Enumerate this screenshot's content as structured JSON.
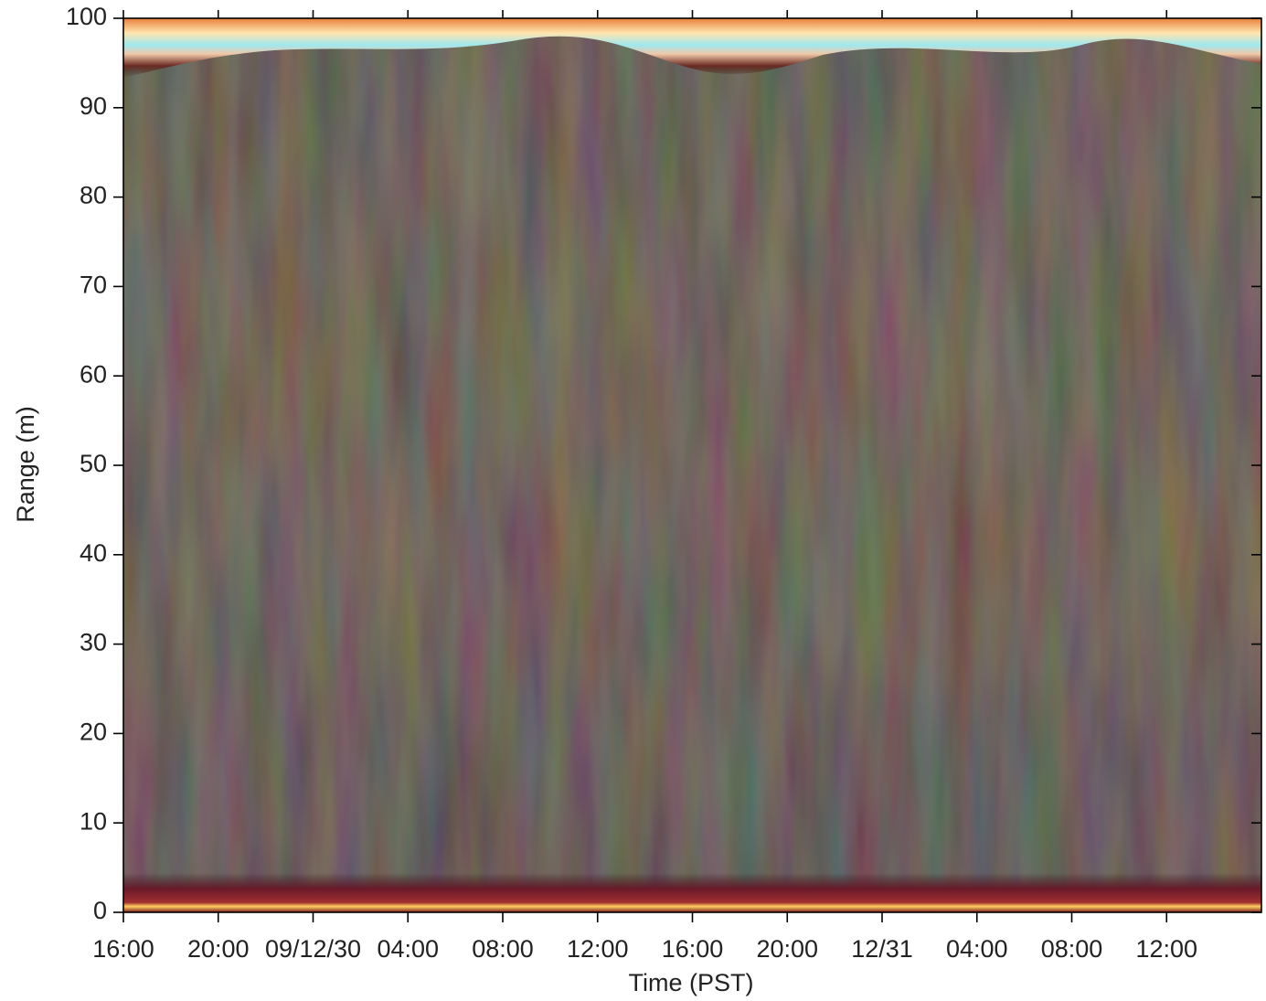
{
  "chart_data": {
    "type": "echogram",
    "xlabel": "Time (PST)",
    "ylabel": "Range (m)",
    "xlim": [
      "2009-12-29T16:00",
      "2009-12-31T16:00"
    ],
    "xticks": [
      {
        "value": "2009-12-29T16:00",
        "label": "16:00"
      },
      {
        "value": "2009-12-29T20:00",
        "label": "20:00"
      },
      {
        "value": "2009-12-30T00:00",
        "label": "09/12/30"
      },
      {
        "value": "2009-12-30T04:00",
        "label": "04:00"
      },
      {
        "value": "2009-12-30T08:00",
        "label": "08:00"
      },
      {
        "value": "2009-12-30T12:00",
        "label": "12:00"
      },
      {
        "value": "2009-12-30T16:00",
        "label": "16:00"
      },
      {
        "value": "2009-12-30T20:00",
        "label": "20:00"
      },
      {
        "value": "2009-12-31T00:00",
        "label": "12/31"
      },
      {
        "value": "2009-12-31T04:00",
        "label": "04:00"
      },
      {
        "value": "2009-12-31T08:00",
        "label": "08:00"
      },
      {
        "value": "2009-12-31T12:00",
        "label": "12:00"
      }
    ],
    "ylim": [
      0,
      100
    ],
    "yticks": [
      0,
      10,
      20,
      30,
      40,
      50,
      60,
      70,
      80,
      90,
      100
    ]
  }
}
